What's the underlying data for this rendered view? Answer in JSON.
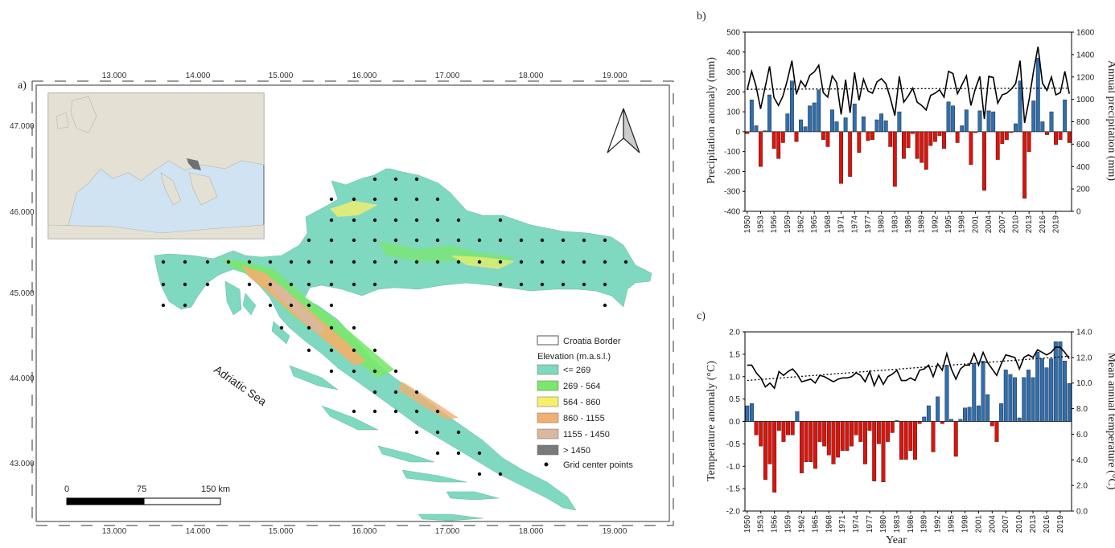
{
  "chart_data": [
    {
      "type": "map",
      "panel_label": "a)",
      "lon_ticks": [
        "13.000",
        "14.000",
        "15.000",
        "16.000",
        "17.000",
        "18.000",
        "19.000"
      ],
      "lat_ticks": [
        "47.000",
        "46.000",
        "45.000",
        "44.000",
        "43.000"
      ],
      "sea_label": "Adriatic Sea",
      "scale_bar": {
        "labels": [
          "0",
          "75",
          "150 km"
        ]
      },
      "legend": {
        "border_label": "Croatia Border",
        "elevation_title": "Elevation (m.a.s.l.)",
        "classes": [
          {
            "label": "<= 269",
            "color": "#7fd8c0"
          },
          {
            "label": "269 - 564",
            "color": "#7ae86a"
          },
          {
            "label": "564 - 860",
            "color": "#f4f06a"
          },
          {
            "label": "860 - 1155",
            "color": "#f2b070"
          },
          {
            "label": "1155 - 1450",
            "color": "#d9b8a0"
          },
          {
            "label": "> 1450",
            "color": "#7a7a7a"
          }
        ],
        "points_label": "Grid center points"
      }
    },
    {
      "type": "bar",
      "panel_label": "b)",
      "xlabel": "",
      "ylabel": "Precipitation anomaly (mm)",
      "y2label": "Annual precipitation (mm)",
      "ylim": [
        -400,
        500
      ],
      "y2lim": [
        0,
        1600
      ],
      "yticks": [
        "500",
        "400",
        "300",
        "200",
        "100",
        "0",
        "-100",
        "-200",
        "-300",
        "-400"
      ],
      "y2ticks": [
        "1600",
        "1400",
        "1200",
        "1000",
        "800",
        "600",
        "400",
        "200",
        "0"
      ],
      "x_tick_labels": [
        "1950",
        "1953",
        "1956",
        "1959",
        "1962",
        "1965",
        "1968",
        "1971",
        "1974",
        "1977",
        "1980",
        "1983",
        "1986",
        "1989",
        "1992",
        "1995",
        "1998",
        "2001",
        "2004",
        "2007",
        "2010",
        "2013",
        "2016",
        "2019"
      ],
      "years_start": 1950,
      "anomaly": [
        -10,
        160,
        30,
        -175,
        5,
        185,
        -85,
        -135,
        -55,
        90,
        255,
        -50,
        60,
        25,
        130,
        145,
        210,
        -40,
        -75,
        110,
        50,
        -260,
        70,
        -225,
        140,
        -105,
        75,
        -45,
        -40,
        60,
        90,
        55,
        -75,
        -275,
        100,
        -135,
        -80,
        -10,
        -135,
        -155,
        -190,
        -70,
        -50,
        -20,
        -85,
        150,
        130,
        -55,
        30,
        110,
        -165,
        -5,
        105,
        -295,
        105,
        100,
        -140,
        -60,
        -40,
        -5,
        40,
        255,
        -335,
        -100,
        155,
        370,
        50,
        -15,
        100,
        -65,
        -40,
        160,
        -55
      ],
      "annual": [
        1085,
        1250,
        1115,
        915,
        1105,
        1295,
        1015,
        945,
        1030,
        1175,
        1345,
        1045,
        1165,
        1110,
        1215,
        1245,
        1305,
        1060,
        1020,
        1210,
        1150,
        865,
        1175,
        880,
        1240,
        990,
        1180,
        1075,
        1055,
        1155,
        1185,
        1140,
        1010,
        855,
        1205,
        975,
        1030,
        1100,
        975,
        945,
        905,
        1035,
        1055,
        1085,
        1020,
        1250,
        1230,
        1050,
        1130,
        1210,
        945,
        1095,
        1205,
        825,
        1205,
        1195,
        965,
        1040,
        1055,
        1090,
        1140,
        1345,
        790,
        995,
        1250,
        1470,
        1145,
        1080,
        1200,
        1040,
        1060,
        1250,
        1050
      ],
      "trend_start": 1090,
      "trend_end": 1100,
      "colors": {
        "positive": "#2f6fb0",
        "negative": "#e0120a",
        "line": "#000000"
      }
    },
    {
      "type": "bar",
      "panel_label": "c)",
      "xlabel": "Year",
      "ylabel": "Temperature anomaly (°C)",
      "y2label": "Mean annual temperature (°C)",
      "ylim": [
        -2.0,
        2.0
      ],
      "y2lim": [
        0,
        14
      ],
      "yticks": [
        "2.0",
        "1.5",
        "1.0",
        "0.5",
        "0.0",
        "-0.5",
        "-1.0",
        "-1.5",
        "-2.0"
      ],
      "y2ticks": [
        "14.0",
        "12.0",
        "10.0",
        "8.0",
        "6.0",
        "4.0",
        "2.0",
        "0.0"
      ],
      "x_tick_labels": [
        "1950",
        "1953",
        "1956",
        "1959",
        "1962",
        "1965",
        "1968",
        "1971",
        "1974",
        "1977",
        "1980",
        "1983",
        "1986",
        "1989",
        "1992",
        "1995",
        "1998",
        "2001",
        "2004",
        "2007",
        "2010",
        "2013",
        "2016",
        "2019"
      ],
      "years_start": 1950,
      "anomaly": [
        0.35,
        0.4,
        -0.3,
        -0.55,
        -1.3,
        -0.95,
        -1.58,
        -0.2,
        -0.45,
        -0.3,
        -0.3,
        0.22,
        -1.15,
        -0.9,
        -0.9,
        -1.05,
        -0.45,
        -0.55,
        -0.75,
        -0.95,
        -0.8,
        -0.65,
        -0.65,
        -0.55,
        -0.3,
        -0.45,
        -0.95,
        -0.2,
        -1.33,
        -0.5,
        -1.35,
        -0.45,
        -0.25,
        0.02,
        -0.85,
        -0.85,
        -0.65,
        -0.85,
        -0.05,
        0.1,
        0.35,
        -0.68,
        0.55,
        -0.05,
        1.25,
        0.05,
        -0.78,
        0.05,
        0.3,
        0.32,
        1.3,
        0.35,
        1.35,
        0.6,
        -0.1,
        -0.45,
        0.4,
        1.15,
        1.05,
        0.98,
        0.08,
        0.98,
        1.15,
        0.98,
        1.55,
        1.4,
        1.2,
        1.4,
        1.78,
        1.78,
        1.35,
        0.85
      ],
      "annual": [
        11.4,
        11.4,
        10.8,
        10.4,
        9.7,
        10.0,
        9.6,
        10.9,
        10.6,
        10.9,
        11.1,
        10.7,
        10.1,
        10.2,
        10.3,
        10.0,
        10.6,
        10.5,
        10.3,
        10.1,
        10.3,
        10.4,
        10.4,
        10.5,
        10.8,
        10.6,
        10.1,
        10.9,
        9.8,
        10.6,
        9.9,
        10.5,
        10.7,
        11.0,
        10.2,
        10.2,
        10.4,
        10.2,
        11.0,
        11.1,
        11.4,
        10.5,
        11.5,
        11.0,
        12.3,
        11.1,
        10.3,
        11.1,
        11.4,
        11.4,
        12.3,
        11.4,
        12.4,
        11.6,
        11.1,
        10.6,
        11.5,
        12.2,
        12.1,
        12.0,
        11.1,
        12.0,
        12.2,
        12.0,
        12.6,
        12.4,
        12.2,
        12.4,
        12.8,
        12.8,
        12.4,
        11.9
      ],
      "trend_start": 10.2,
      "trend_end": 12.1,
      "colors": {
        "positive": "#2f6fb0",
        "negative": "#e0120a",
        "line": "#000000"
      }
    }
  ]
}
